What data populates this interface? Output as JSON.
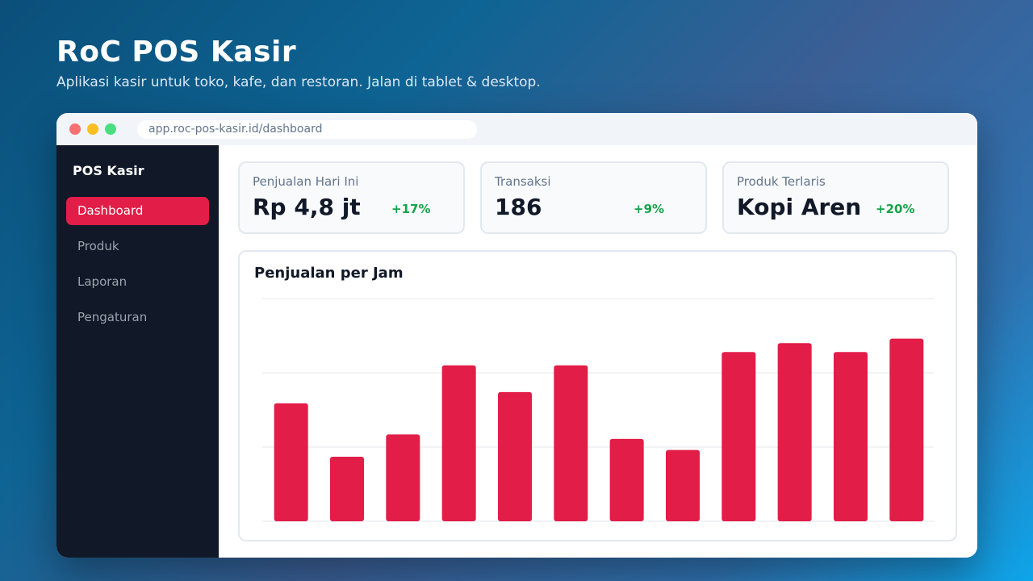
{
  "hero": {
    "title": "RoC POS Kasir",
    "subtitle": "Aplikasi kasir untuk toko, kafe, dan restoran. Jalan di tablet & desktop."
  },
  "browser": {
    "url": "app.roc-pos-kasir.id/dashboard"
  },
  "sidebar": {
    "brand": "POS Kasir",
    "items": [
      {
        "label": "Dashboard",
        "active": true
      },
      {
        "label": "Produk",
        "active": false
      },
      {
        "label": "Laporan",
        "active": false
      },
      {
        "label": "Pengaturan",
        "active": false
      }
    ]
  },
  "stats": [
    {
      "label": "Penjualan Hari Ini",
      "value": "Rp 4,8 jt",
      "delta": "+17%"
    },
    {
      "label": "Transaksi",
      "value": "186",
      "delta": "+9%"
    },
    {
      "label": "Produk Terlaris",
      "value": "Kopi Aren",
      "delta": "+20%"
    }
  ],
  "colors": {
    "accent": "#e11d48",
    "positive": "#16a34a",
    "sidebar_bg": "#111827"
  },
  "chart_data": {
    "type": "bar",
    "title": "Penjualan per Jam",
    "xlabel": "",
    "ylabel": "",
    "ylim": [
      0,
      100
    ],
    "grid": true,
    "values": [
      53,
      29,
      39,
      70,
      58,
      70,
      37,
      32,
      76,
      80,
      76,
      82
    ]
  }
}
